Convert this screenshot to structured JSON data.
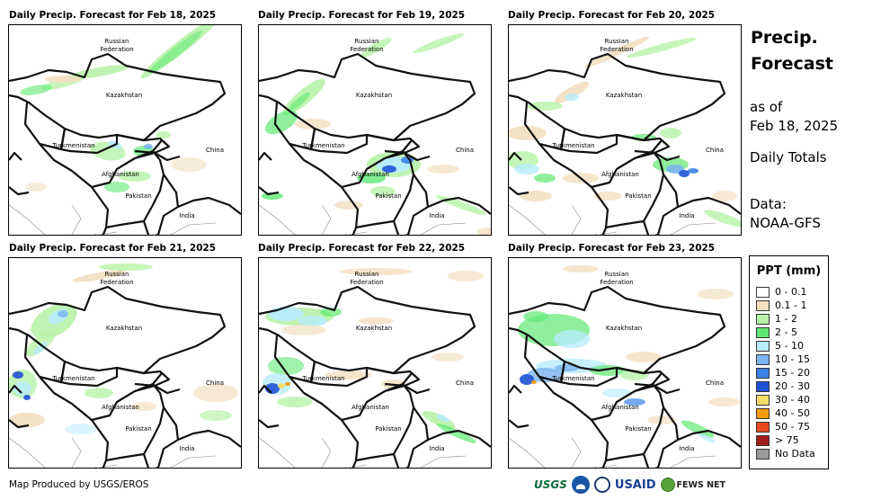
{
  "panels": [
    {
      "title": "Daily Precip. Forecast for Feb 18, 2025"
    },
    {
      "title": "Daily Precip. Forecast for Feb 19, 2025"
    },
    {
      "title": "Daily Precip. Forecast for Feb 20, 2025"
    },
    {
      "title": "Daily Precip. Forecast for Feb 21, 2025"
    },
    {
      "title": "Daily Precip. Forecast for Feb 22, 2025"
    },
    {
      "title": "Daily Precip. Forecast for Feb 23, 2025"
    }
  ],
  "map_labels": {
    "russia": "Russian\nFederation",
    "kazakhstan": "Kazakhstan",
    "turkmenistan": "Turkmenistan",
    "afghanistan": "Afghanistan",
    "pakistan": "Pakistan",
    "china": "China",
    "india": "India"
  },
  "info": {
    "title_line1": "Precip.",
    "title_line2": "Forecast",
    "asof_line1": "as of",
    "asof_line2": "Feb 18, 2025",
    "totals": "Daily Totals",
    "data_line1": "Data:",
    "data_line2": "NOAA-GFS"
  },
  "legend": {
    "title": "PPT (mm)",
    "items": [
      {
        "label": "0 - 0.1",
        "color": "#ffffff"
      },
      {
        "label": "0.1 - 1",
        "color": "#f2dfc0"
      },
      {
        "label": "1 - 2",
        "color": "#b8f2a8"
      },
      {
        "label": "2 - 5",
        "color": "#5fe873"
      },
      {
        "label": "5 - 10",
        "color": "#b7ecfb"
      },
      {
        "label": "10 - 15",
        "color": "#7bb4ee"
      },
      {
        "label": "15 - 20",
        "color": "#3d83e6"
      },
      {
        "label": "20 - 30",
        "color": "#1f52d6"
      },
      {
        "label": "30 - 40",
        "color": "#f6dc6a"
      },
      {
        "label": "40 - 50",
        "color": "#f29b10"
      },
      {
        "label": "50 - 75",
        "color": "#e84a1e"
      },
      {
        "label": "> 75",
        "color": "#a01c1c"
      },
      {
        "label": "No Data",
        "color": "#9a9a9a"
      }
    ]
  },
  "footer": "Map Produced by USGS/EROS",
  "logos": {
    "usgs": "USGS",
    "usaid": "USAID",
    "fews": "FEWS NET"
  }
}
